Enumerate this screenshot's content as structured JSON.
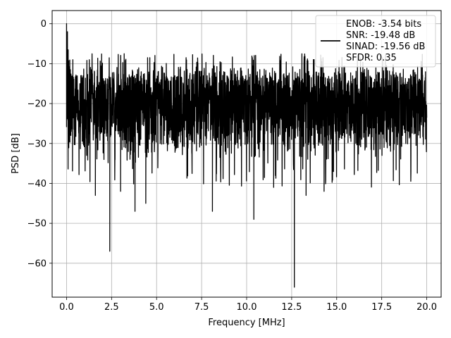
{
  "chart_data": {
    "type": "line",
    "title": "",
    "xlabel": "Frequency [MHz]",
    "ylabel": "PSD [dB]",
    "xlim": [
      -0.8,
      20.8
    ],
    "ylim": [
      -68.5,
      3.3
    ],
    "xticks": [
      0.0,
      2.5,
      5.0,
      7.5,
      10.0,
      12.5,
      15.0,
      17.5,
      20.0
    ],
    "xtick_labels": [
      "0.0",
      "2.5",
      "5.0",
      "7.5",
      "10.0",
      "12.5",
      "15.0",
      "17.5",
      "20.0"
    ],
    "yticks": [
      0,
      -10,
      -20,
      -30,
      -40,
      -50,
      -60
    ],
    "ytick_labels": [
      "0",
      "−10",
      "−20",
      "−30",
      "−40",
      "−50",
      "−60"
    ],
    "grid": true,
    "legend_position": "top-right",
    "legend_lines": [
      "ENOB: -3.54 bits",
      "SNR: -19.48 dB",
      "SINAD: -19.56 dB",
      "SFDR: 0.35"
    ],
    "series": [
      {
        "color": "#000000",
        "x_range": [
          0,
          20
        ],
        "noise_floor_db": -20,
        "upper_envelope_db": -10,
        "lower_envelope_db": -36,
        "peaks": [
          {
            "x": 0.0,
            "y": 0
          },
          {
            "x": 0.05,
            "y": -2
          },
          {
            "x": 0.35,
            "y": -9
          },
          {
            "x": 3.2,
            "y": -7.5
          },
          {
            "x": 4.5,
            "y": -8.5
          }
        ],
        "dips": [
          {
            "x": 1.6,
            "y": -43
          },
          {
            "x": 2.4,
            "y": -57
          },
          {
            "x": 3.0,
            "y": -42
          },
          {
            "x": 3.8,
            "y": -47
          },
          {
            "x": 4.4,
            "y": -45
          },
          {
            "x": 8.1,
            "y": -47
          },
          {
            "x": 10.4,
            "y": -49
          },
          {
            "x": 12.65,
            "y": -66
          },
          {
            "x": 13.3,
            "y": -43
          },
          {
            "x": 11.5,
            "y": -41
          },
          {
            "x": 14.3,
            "y": -42
          }
        ]
      }
    ]
  }
}
